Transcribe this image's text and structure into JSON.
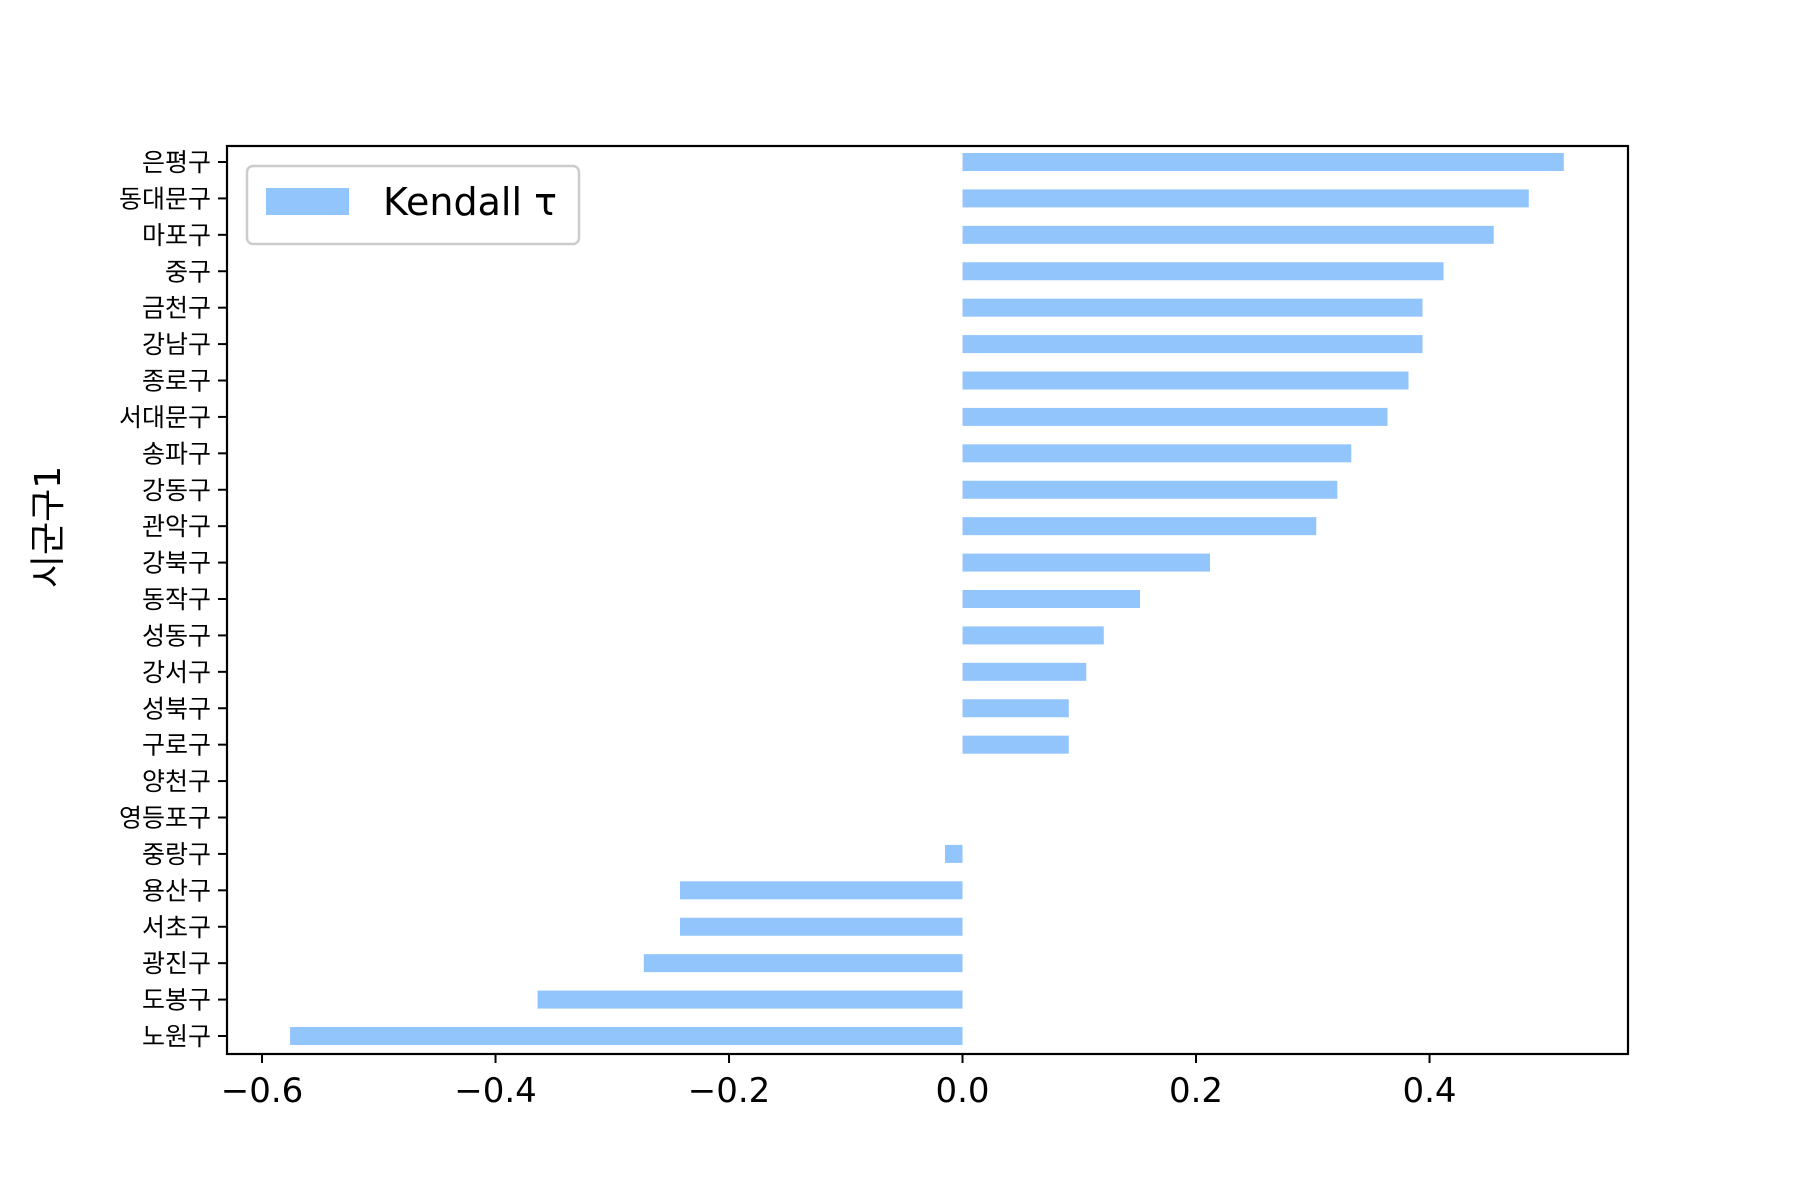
{
  "chart_data": {
    "type": "bar",
    "orientation": "horizontal",
    "categories": [
      "은평구",
      "동대문구",
      "마포구",
      "중구",
      "금천구",
      "강남구",
      "종로구",
      "서대문구",
      "송파구",
      "강동구",
      "관악구",
      "강북구",
      "동작구",
      "성동구",
      "강서구",
      "성북구",
      "구로구",
      "양천구",
      "영등포구",
      "중랑구",
      "용산구",
      "서초구",
      "광진구",
      "도봉구",
      "노원구"
    ],
    "series": [
      {
        "name": "Kendall τ",
        "color": "#93c5fd",
        "values": [
          0.515,
          0.485,
          0.455,
          0.412,
          0.394,
          0.394,
          0.382,
          0.364,
          0.333,
          0.321,
          0.303,
          0.212,
          0.152,
          0.121,
          0.106,
          0.091,
          0.091,
          0.0,
          0.0,
          -0.015,
          -0.242,
          -0.242,
          -0.273,
          -0.364,
          -0.576
        ]
      }
    ],
    "ylabel": "시군구1",
    "xlim": [
      -0.63,
      0.57
    ],
    "xticks": [
      -0.6,
      -0.4,
      -0.2,
      0.0,
      0.2,
      0.4
    ],
    "xtick_labels": [
      "−0.6",
      "−0.4",
      "−0.2",
      "0.0",
      "0.2",
      "0.4"
    ],
    "grid": false,
    "legend_position": "upper-left"
  }
}
